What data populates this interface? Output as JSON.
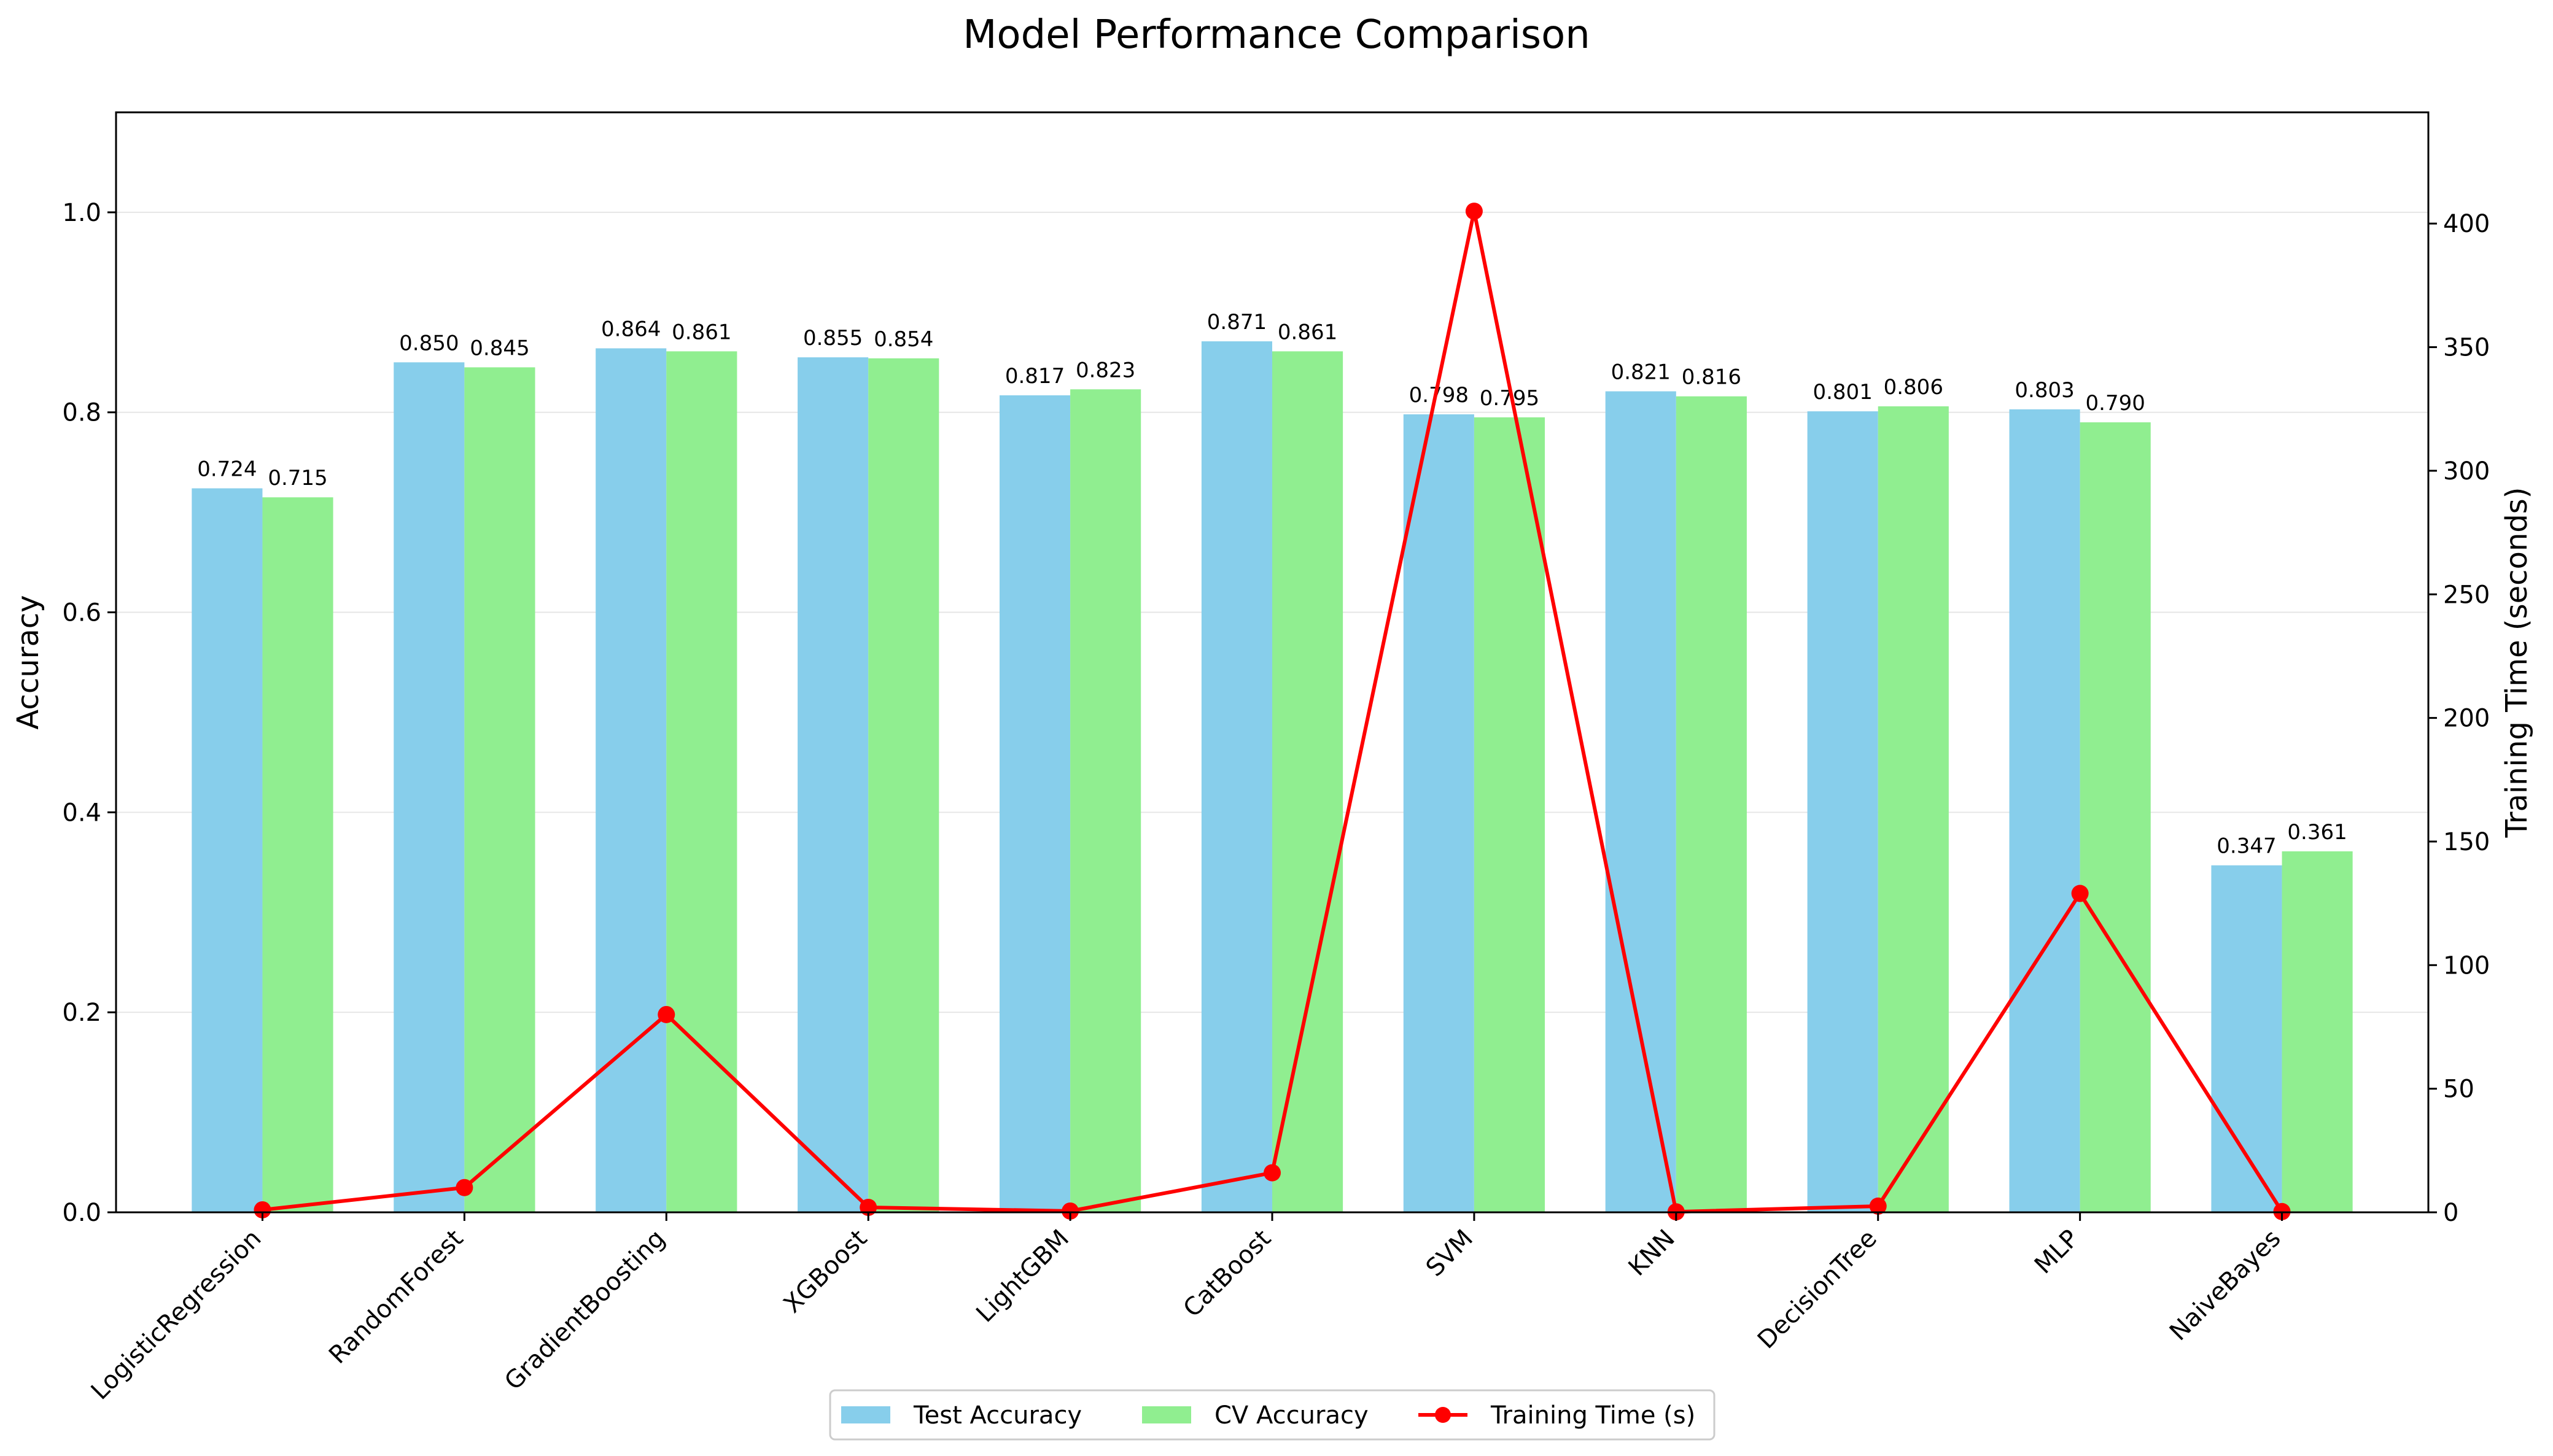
{
  "chart_data": {
    "type": "bar",
    "title": "Model Performance Comparison",
    "xlabel": "",
    "ylabel": "Accuracy",
    "y2label": "Training Time (seconds)",
    "ylim": [
      0,
      1.1
    ],
    "y2lim": [
      0,
      445
    ],
    "yticks": [
      0.0,
      0.2,
      0.4,
      0.6,
      0.8,
      1.0
    ],
    "y2ticks": [
      0,
      50,
      100,
      150,
      200,
      250,
      300,
      350,
      400
    ],
    "grid": "y-major",
    "legend_position": "bottom-center",
    "categories": [
      "LogisticRegression",
      "RandomForest",
      "GradientBoosting",
      "XGBoost",
      "LightGBM",
      "CatBoost",
      "SVM",
      "KNN",
      "DecisionTree",
      "MLP",
      "NaiveBayes"
    ],
    "series": [
      {
        "name": "Test Accuracy",
        "kind": "bar",
        "axis": "left",
        "color": "#87CEEB",
        "values": [
          0.724,
          0.85,
          0.864,
          0.855,
          0.817,
          0.871,
          0.798,
          0.821,
          0.801,
          0.803,
          0.347
        ],
        "labels": [
          "0.724",
          "0.850",
          "0.864",
          "0.855",
          "0.817",
          "0.871",
          "0.798",
          "0.821",
          "0.801",
          "0.803",
          "0.347"
        ]
      },
      {
        "name": "CV Accuracy",
        "kind": "bar",
        "axis": "left",
        "color": "#90EE90",
        "values": [
          0.715,
          0.845,
          0.861,
          0.854,
          0.823,
          0.861,
          0.795,
          0.816,
          0.806,
          0.79,
          0.361
        ],
        "labels": [
          "0.715",
          "0.845",
          "0.861",
          "0.854",
          "0.823",
          "0.861",
          "0.795",
          "0.816",
          "0.806",
          "0.790",
          "0.361"
        ]
      },
      {
        "name": "Training Time (s)",
        "kind": "line",
        "axis": "right",
        "color": "#FF0000",
        "values": [
          1,
          10,
          80,
          2,
          0.5,
          16,
          405,
          0.2,
          2.5,
          129,
          0.3
        ]
      }
    ]
  }
}
